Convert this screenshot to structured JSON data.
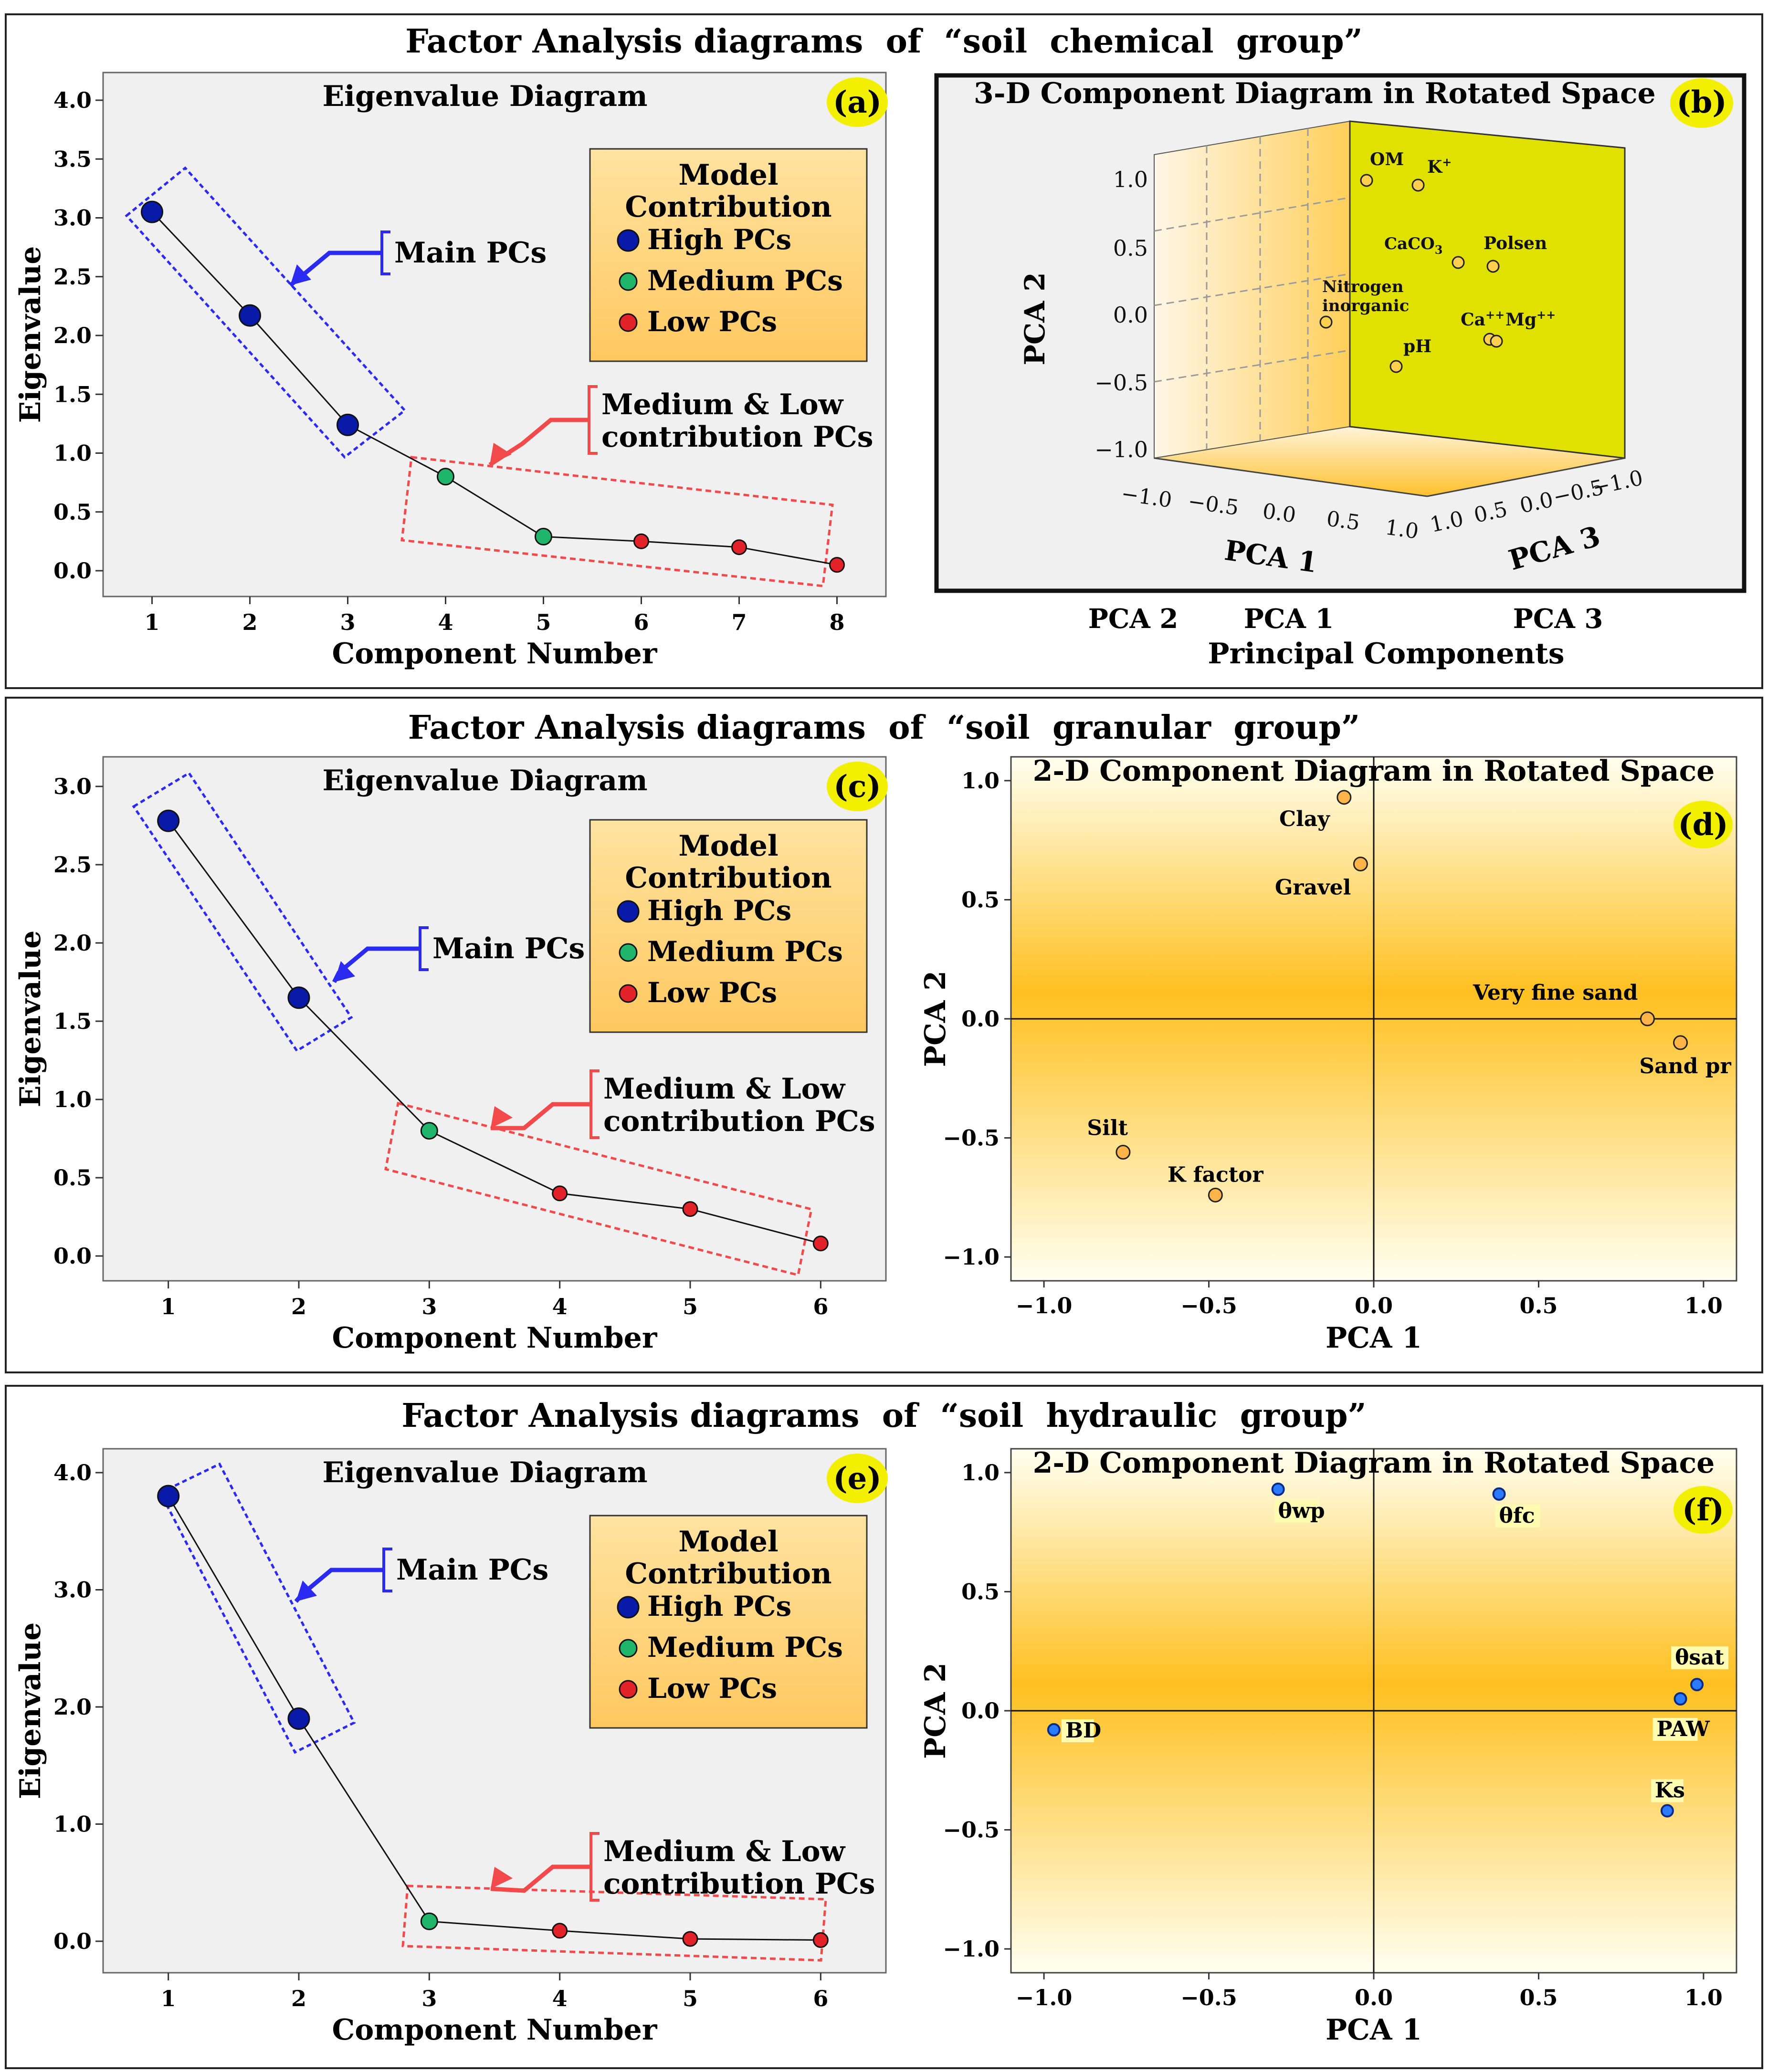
{
  "chart_data": [
    {
      "id": "a",
      "type": "line",
      "group_title": "Factor Analysis diagrams  of  “soil  chemical  group”",
      "title": "Eigenvalue Diagram",
      "panel_label": "(a)",
      "xlabel": "Component Number",
      "ylabel": "Eigenvalue",
      "ylim": [
        0,
        4
      ],
      "xlim": [
        0.5,
        8.5
      ],
      "yticks": [
        "0.0",
        "0.5",
        "1.0",
        "1.5",
        "2.0",
        "2.5",
        "3.0",
        "3.5",
        "4.0"
      ],
      "xticks": [
        "1",
        "2",
        "3",
        "4",
        "5",
        "6",
        "7",
        "8"
      ],
      "x": [
        1,
        2,
        3,
        4,
        5,
        6,
        7,
        8
      ],
      "values": [
        3.05,
        2.17,
        1.24,
        0.8,
        0.29,
        0.25,
        0.2,
        0.05
      ],
      "classes": [
        "high",
        "high",
        "high",
        "medium",
        "medium",
        "low",
        "low",
        "low"
      ]
    },
    {
      "id": "b",
      "type": "scatter",
      "title": "3-D Component Diagram in Rotated Space",
      "panel_label": "(b)",
      "xlabel": "PCA 1",
      "ylabel": "PCA 2",
      "zlabel": "PCA 3",
      "axis_title": "Principal Components",
      "category_labels": [
        "PCA 2",
        "PCA 1",
        "PCA 3"
      ],
      "ylim": [
        -1,
        1
      ],
      "yticks": [
        "1.0",
        "0.5",
        "0.0",
        "−0.5",
        "−1.0"
      ],
      "xticks": [
        "−1.0",
        "−0.5",
        "0.0",
        "0.5",
        "1.0"
      ],
      "zticks": [
        "1.0",
        "0.5",
        "0.0",
        "−0.5",
        "−1.0"
      ],
      "points": [
        {
          "label": "OM",
          "sup": "",
          "sub": ""
        },
        {
          "label": "K",
          "sup": "+",
          "sub": ""
        },
        {
          "label": "CaCO",
          "sup": "",
          "sub": "3"
        },
        {
          "label": "Polsen",
          "sup": "",
          "sub": ""
        },
        {
          "label": "Nitrogen",
          "sup": "",
          "sub": ""
        },
        {
          "label": "inorganic",
          "sup": "",
          "sub": ""
        },
        {
          "label": "Ca",
          "sup": "++",
          "sub": ""
        },
        {
          "label": "Mg",
          "sup": "++",
          "sub": ""
        },
        {
          "label": "pH",
          "sup": "",
          "sub": ""
        }
      ]
    },
    {
      "id": "c",
      "type": "line",
      "group_title": "Factor Analysis diagrams  of  “soil  granular  group”",
      "title": "Eigenvalue Diagram",
      "panel_label": "(c)",
      "xlabel": "Component Number",
      "ylabel": "Eigenvalue",
      "ylim": [
        0,
        3
      ],
      "xlim": [
        0.5,
        6.5
      ],
      "yticks": [
        "0.0",
        "0.5",
        "1.0",
        "1.5",
        "2.0",
        "2.5",
        "3.0"
      ],
      "xticks": [
        "1",
        "2",
        "3",
        "4",
        "5",
        "6"
      ],
      "x": [
        1,
        2,
        3,
        4,
        5,
        6
      ],
      "values": [
        2.78,
        1.65,
        0.8,
        0.4,
        0.3,
        0.08
      ],
      "classes": [
        "high",
        "high",
        "medium",
        "low",
        "low",
        "low"
      ]
    },
    {
      "id": "d",
      "type": "scatter",
      "title": "2-D Component Diagram in Rotated Space",
      "panel_label": "(d)",
      "xlabel": "PCA 1",
      "ylabel": "PCA 2",
      "xlim": [
        -1.1,
        1.1
      ],
      "ylim": [
        -1.1,
        1.1
      ],
      "xticks": [
        "−1.0",
        "−0.5",
        "0.0",
        "0.5",
        "1.0"
      ],
      "yticks": [
        "1.0",
        "0.5",
        "0.0",
        "−0.5",
        "−1.0"
      ],
      "points": [
        {
          "label": "Clay",
          "x": -0.09,
          "y": 0.93
        },
        {
          "label": "Gravel",
          "x": -0.04,
          "y": 0.65
        },
        {
          "label": "Very fine  sand",
          "x": 0.83,
          "y": 0.0
        },
        {
          "label": "Sand pr",
          "x": 0.93,
          "y": -0.1
        },
        {
          "label": "Silt",
          "x": -0.76,
          "y": -0.56
        },
        {
          "label": "K factor",
          "x": -0.48,
          "y": -0.74
        }
      ]
    },
    {
      "id": "e",
      "type": "line",
      "group_title": "Factor Analysis diagrams  of  “soil  hydraulic  group”",
      "title": "Eigenvalue Diagram",
      "panel_label": "(e)",
      "xlabel": "Component Number",
      "ylabel": "Eigenvalue",
      "ylim": [
        0,
        4
      ],
      "xlim": [
        0.5,
        6.5
      ],
      "yticks": [
        "0.0",
        "1.0",
        "2.0",
        "3.0",
        "4.0"
      ],
      "xticks": [
        "1",
        "2",
        "3",
        "4",
        "5",
        "6"
      ],
      "x": [
        1,
        2,
        3,
        4,
        5,
        6
      ],
      "values": [
        3.8,
        1.9,
        0.17,
        0.09,
        0.02,
        0.01
      ],
      "classes": [
        "high",
        "high",
        "medium",
        "low",
        "low",
        "low"
      ]
    },
    {
      "id": "f",
      "type": "scatter",
      "title": "2-D Component Diagram in Rotated Space",
      "panel_label": "(f)",
      "xlabel": "PCA 1",
      "ylabel": "PCA 2",
      "xlim": [
        -1.1,
        1.1
      ],
      "ylim": [
        -1.1,
        1.1
      ],
      "xticks": [
        "−1.0",
        "−0.5",
        "0.0",
        "0.5",
        "1.0"
      ],
      "yticks": [
        "1.0",
        "0.5",
        "0.0",
        "−0.5",
        "−1.0"
      ],
      "points": [
        {
          "label": "θwp",
          "x": -0.29,
          "y": 0.93
        },
        {
          "label": "θfc",
          "x": 0.38,
          "y": 0.91
        },
        {
          "label": "θsat",
          "x": 0.98,
          "y": 0.11
        },
        {
          "label": "PAW",
          "x": 0.93,
          "y": 0.05
        },
        {
          "label": "Ks",
          "x": 0.89,
          "y": -0.42
        },
        {
          "label": "BD",
          "x": -0.97,
          "y": -0.08
        }
      ]
    }
  ],
  "legend": {
    "title_line1": "Model",
    "title_line2": "Contribution",
    "items": [
      {
        "key": "high",
        "label": "High PCs",
        "color": "#0a1aa8"
      },
      {
        "key": "medium",
        "label": "Medium PCs",
        "color": "#1fb56b"
      },
      {
        "key": "low",
        "label": "Low PCs",
        "color": "#e2242a"
      }
    ]
  },
  "annotations": {
    "main": "Main PCs",
    "medium_low_line1": "Medium & Low",
    "medium_low_line2": "contribution PCs"
  },
  "colors": {
    "high": "#0a1aa8",
    "medium": "#1fb56b",
    "low": "#e2242a",
    "main_arrow": "#2a2af0",
    "ml_arrow": "#f24a4a",
    "badge": "#f2f000",
    "plot_bg": "#f0f0f0",
    "wall": "#e1e100"
  }
}
